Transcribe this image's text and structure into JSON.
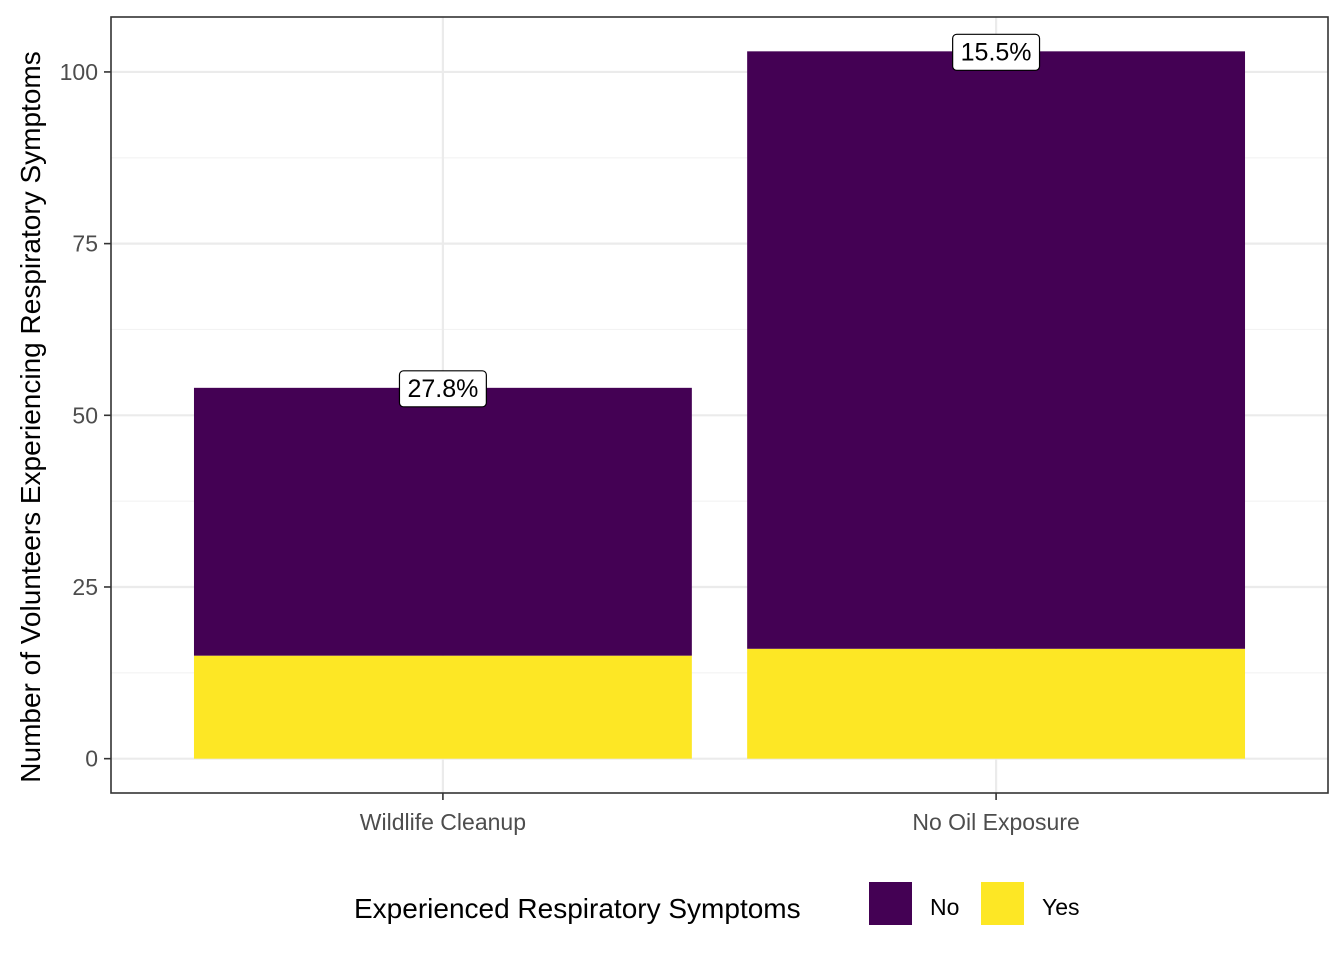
{
  "chart_data": {
    "type": "bar",
    "stacked": true,
    "categories": [
      "Wildlife Cleanup",
      "No Oil Exposure"
    ],
    "series": [
      {
        "name": "No",
        "values": [
          39,
          87
        ],
        "color": "#440154"
      },
      {
        "name": "Yes",
        "values": [
          15,
          16
        ],
        "color": "#FDE725"
      }
    ],
    "data_labels": [
      "27.8%",
      "15.5%"
    ],
    "ylabel": "Number of Volunteers Experiencing Respiratory Symptoms",
    "xlabel": "",
    "ylim": [
      -5,
      108
    ],
    "yticks": [
      0,
      25,
      50,
      75,
      100
    ],
    "legend": {
      "title": "Experienced Respiratory Symptoms",
      "placement": "bottom",
      "entries": [
        "No",
        "Yes"
      ]
    },
    "grid": true
  }
}
